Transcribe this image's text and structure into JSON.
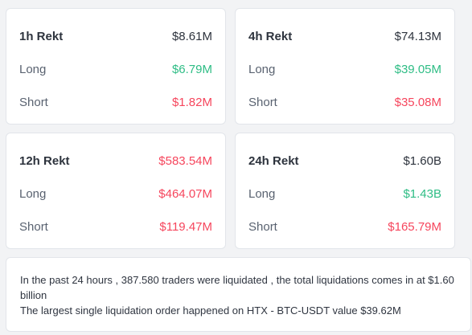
{
  "colors": {
    "green": "#2ebd85",
    "red": "#f6465d",
    "neutral": "#2d333d"
  },
  "cards": [
    {
      "title": "1h Rekt",
      "total": "$8.61M",
      "total_color": "neutral",
      "long_label": "Long",
      "long": "$6.79M",
      "short_label": "Short",
      "short": "$1.82M"
    },
    {
      "title": "4h Rekt",
      "total": "$74.13M",
      "total_color": "neutral",
      "long_label": "Long",
      "long": "$39.05M",
      "short_label": "Short",
      "short": "$35.08M"
    },
    {
      "title": "12h Rekt",
      "total": "$583.54M",
      "total_color": "red",
      "long_label": "Long",
      "long": "$464.07M",
      "short_label": "Short",
      "short": "$119.47M"
    },
    {
      "title": "24h Rekt",
      "total": "$1.60B",
      "total_color": "neutral",
      "long_label": "Long",
      "long": "$1.43B",
      "short_label": "Short",
      "short": "$165.79M"
    }
  ],
  "summary": {
    "line1": "In the past 24 hours , 387.580 traders were liquidated , the total liquidations comes in at $1.60 billion",
    "line2": "The largest single liquidation order happened on HTX - BTC-USDT value $39.62M"
  }
}
